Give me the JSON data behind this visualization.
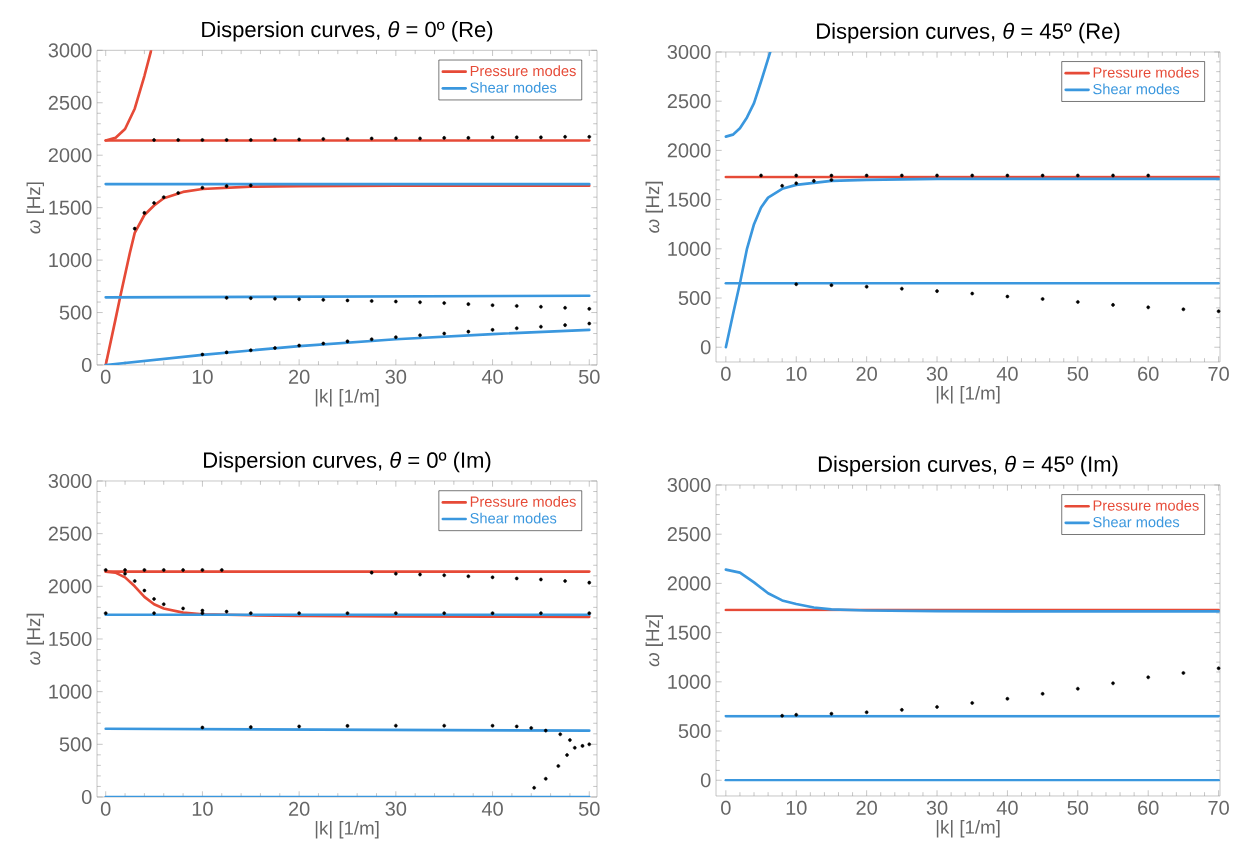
{
  "chart_data": [
    {
      "type": "line",
      "title": "Dispersion curves, *θ* = 0º (Re)",
      "xlabel": "|k| [1/m]",
      "ylabel": "*ω* [Hz]",
      "xlim": [
        -0.9,
        50.8
      ],
      "ylim": [
        0,
        3000
      ],
      "xticks": [
        0,
        10,
        20,
        30,
        40,
        50
      ],
      "yticks": [
        0,
        500,
        1000,
        1500,
        2000,
        2500,
        3000
      ],
      "legend": "top right",
      "series": [
        {
          "name": "Pressure modes",
          "color": "#e64a37",
          "x": [
            0,
            50
          ],
          "values": [
            2140,
            2140
          ]
        },
        {
          "color": "#e64a37",
          "x": [
            0,
            1,
            2,
            3,
            4,
            4.7
          ],
          "values": [
            2140,
            2165,
            2250,
            2443,
            2755,
            3000
          ]
        },
        {
          "color": "#e64a37",
          "x": [
            0,
            1,
            1.5,
            2,
            2.5,
            3,
            4,
            5,
            6,
            8,
            10,
            15,
            20,
            30,
            40,
            50
          ],
          "values": [
            0,
            430,
            650,
            860,
            1070,
            1260,
            1430,
            1520,
            1590,
            1650,
            1678,
            1700,
            1705,
            1710,
            1710,
            1710
          ]
        },
        {
          "name": "Shear modes",
          "color": "#3a97de",
          "x": [
            0,
            50
          ],
          "values": [
            1725,
            1725
          ]
        },
        {
          "color": "#3a97de",
          "x": [
            0,
            50
          ],
          "values": [
            645,
            660
          ]
        },
        {
          "color": "#3a97de",
          "x": [
            0,
            10,
            20,
            30,
            40,
            50
          ],
          "values": [
            0,
            97,
            180,
            245,
            295,
            335
          ]
        },
        {
          "type": "scatter",
          "marker": "circle",
          "color": "#000000",
          "x": [
            5,
            7.5,
            10,
            12.5,
            15,
            17.5,
            20,
            22.5,
            25,
            27.5,
            30,
            32.5,
            35,
            37.5,
            40,
            42.5,
            45,
            47.5,
            50
          ],
          "values": [
            2145,
            2145,
            2145,
            2145,
            2145,
            2150,
            2150,
            2155,
            2155,
            2160,
            2160,
            2160,
            2165,
            2165,
            2170,
            2170,
            2170,
            2175,
            2175
          ]
        },
        {
          "type": "scatter",
          "marker": "circle",
          "color": "#000000",
          "x": [
            3,
            4,
            5,
            6,
            7.5,
            10,
            12.5,
            15
          ],
          "values": [
            1300,
            1450,
            1545,
            1600,
            1640,
            1690,
            1705,
            1712
          ]
        },
        {
          "type": "scatter",
          "marker": "circle",
          "color": "#000000",
          "x": [
            12.5,
            15,
            17.5,
            20,
            22.5,
            25,
            27.5,
            30,
            32.5,
            35,
            37.5,
            40,
            42.5,
            45,
            47.5,
            50
          ],
          "values": [
            640,
            637,
            632,
            627,
            621,
            615,
            610,
            605,
            598,
            590,
            580,
            570,
            563,
            555,
            545,
            535
          ]
        },
        {
          "type": "scatter",
          "marker": "circle",
          "color": "#000000",
          "x": [
            10,
            12.5,
            15,
            17.5,
            20,
            22.5,
            25,
            27.5,
            30,
            32.5,
            35,
            37.5,
            40,
            42.5,
            45,
            47.5,
            50
          ],
          "values": [
            100,
            120,
            140,
            162,
            185,
            205,
            225,
            245,
            265,
            283,
            300,
            318,
            335,
            350,
            365,
            380,
            395
          ]
        }
      ]
    },
    {
      "type": "line",
      "title": "Dispersion curves, *θ* = 45º (Re)",
      "xlabel": "|k| [1/m]",
      "ylabel": "*ω* [Hz]",
      "xlim": [
        -1.4,
        70.2
      ],
      "ylim": [
        -150,
        3000
      ],
      "xticks": [
        0,
        10,
        20,
        30,
        40,
        50,
        60,
        70
      ],
      "yticks": [
        0,
        500,
        1000,
        1500,
        2000,
        2500,
        3000
      ],
      "legend": "top right",
      "series": [
        {
          "name": "Pressure modes",
          "color": "#e64a37",
          "x": [
            0,
            70
          ],
          "values": [
            1730,
            1730
          ]
        },
        {
          "name": "Shear modes",
          "color": "#3a97de",
          "x": [
            0,
            1,
            2,
            3,
            4,
            5,
            6.3
          ],
          "values": [
            2140,
            2160,
            2225,
            2335,
            2480,
            2700,
            3000
          ]
        },
        {
          "color": "#3a97de",
          "x": [
            0,
            1,
            2,
            3,
            4,
            5,
            6,
            8,
            10,
            15,
            20,
            30,
            40,
            50,
            60,
            70
          ],
          "values": [
            0,
            330,
            650,
            1000,
            1250,
            1420,
            1520,
            1610,
            1650,
            1690,
            1700,
            1710,
            1710,
            1710,
            1710,
            1710
          ]
        },
        {
          "color": "#3a97de",
          "x": [
            0,
            70
          ],
          "values": [
            650,
            650
          ]
        },
        {
          "type": "scatter",
          "marker": "circle",
          "color": "#000000",
          "x": [
            5,
            10,
            15,
            20,
            25,
            30,
            35,
            40,
            45,
            50,
            55,
            60
          ],
          "values": [
            1745,
            1745,
            1745,
            1745,
            1745,
            1745,
            1745,
            1745,
            1745,
            1745,
            1745,
            1745
          ]
        },
        {
          "type": "scatter",
          "marker": "circle",
          "color": "#000000",
          "x": [
            8,
            10,
            12.5,
            15
          ],
          "values": [
            1640,
            1665,
            1690,
            1700
          ]
        },
        {
          "type": "scatter",
          "marker": "circle",
          "color": "#000000",
          "x": [
            10,
            15,
            20,
            25,
            30,
            35,
            40,
            45,
            50,
            55,
            60,
            65,
            70
          ],
          "values": [
            640,
            630,
            615,
            595,
            570,
            545,
            515,
            490,
            460,
            430,
            405,
            385,
            365
          ]
        }
      ]
    },
    {
      "type": "line",
      "title": "Dispersion curves, *θ* = 0º (Im)",
      "xlabel": "|k| [1/m]",
      "ylabel": "*ω* [Hz]",
      "xlim": [
        -0.9,
        50.8
      ],
      "ylim": [
        0,
        3000
      ],
      "xticks": [
        0,
        10,
        20,
        30,
        40,
        50
      ],
      "yticks": [
        0,
        500,
        1000,
        1500,
        2000,
        2500,
        3000
      ],
      "legend": "top right",
      "series": [
        {
          "name": "Pressure modes",
          "color": "#e64a37",
          "x": [
            0,
            50
          ],
          "values": [
            2140,
            2140
          ]
        },
        {
          "color": "#e64a37",
          "x": [
            0,
            1,
            2,
            3,
            4,
            5,
            6,
            8,
            10,
            15,
            20,
            30,
            40,
            50
          ],
          "values": [
            2140,
            2130,
            2085,
            2000,
            1900,
            1830,
            1790,
            1750,
            1735,
            1725,
            1720,
            1715,
            1712,
            1710
          ]
        },
        {
          "name": "Shear modes",
          "color": "#3a97de",
          "x": [
            0,
            50
          ],
          "values": [
            1730,
            1730
          ]
        },
        {
          "color": "#3a97de",
          "x": [
            0,
            50
          ],
          "values": [
            648,
            630
          ]
        },
        {
          "color": "#3a97de",
          "x": [
            0,
            50
          ],
          "values": [
            0,
            0
          ]
        },
        {
          "type": "scatter",
          "marker": "circle",
          "color": "#000000",
          "x": [
            0,
            2,
            4,
            6,
            8,
            10,
            12
          ],
          "values": [
            2155,
            2155,
            2155,
            2155,
            2155,
            2155,
            2155
          ]
        },
        {
          "type": "scatter",
          "marker": "circle",
          "color": "#000000",
          "x": [
            27.5,
            30,
            32.5,
            35,
            37.5,
            40,
            42.5,
            45,
            47.5,
            50
          ],
          "values": [
            2130,
            2120,
            2112,
            2105,
            2095,
            2085,
            2075,
            2065,
            2050,
            2035
          ]
        },
        {
          "type": "scatter",
          "marker": "circle",
          "color": "#000000",
          "x": [
            2,
            3,
            4,
            5,
            6,
            8,
            10,
            12.5
          ],
          "values": [
            2120,
            2050,
            1960,
            1880,
            1830,
            1790,
            1770,
            1760
          ]
        },
        {
          "type": "scatter",
          "marker": "circle",
          "color": "#000000",
          "x": [
            0,
            5,
            10,
            15,
            20,
            25,
            30,
            35,
            40,
            45,
            50
          ],
          "values": [
            1745,
            1745,
            1745,
            1745,
            1745,
            1745,
            1745,
            1745,
            1745,
            1745,
            1745
          ]
        },
        {
          "type": "scatter",
          "marker": "circle",
          "color": "#000000",
          "x": [
            10,
            15,
            20,
            25,
            30,
            35,
            40,
            42.5,
            44,
            45.5,
            47,
            48
          ],
          "values": [
            660,
            663,
            670,
            675,
            677,
            677,
            677,
            670,
            655,
            630,
            595,
            540
          ]
        },
        {
          "type": "scatter",
          "marker": "circle",
          "color": "#000000",
          "x": [
            44.3,
            45.5,
            46.8,
            47.7,
            48.5,
            49.3,
            50
          ],
          "values": [
            87,
            173,
            294,
            398,
            467,
            485,
            500
          ]
        }
      ]
    },
    {
      "type": "line",
      "title": "Dispersion curves, *θ* = 45º (Im)",
      "xlabel": "|k| [1/m]",
      "ylabel": "*ω* [Hz]",
      "xlim": [
        -1.4,
        70.2
      ],
      "ylim": [
        -160,
        3000
      ],
      "xticks": [
        0,
        10,
        20,
        30,
        40,
        50,
        60,
        70
      ],
      "yticks": [
        0,
        500,
        1000,
        1500,
        2000,
        2500,
        3000
      ],
      "legend": "top right",
      "series": [
        {
          "name": "Pressure modes",
          "color": "#e64a37",
          "x": [
            0,
            70
          ],
          "values": [
            1730,
            1730
          ]
        },
        {
          "name": "Shear modes",
          "color": "#3a97de",
          "x": [
            0,
            2,
            4,
            6,
            8,
            10,
            12.5,
            15,
            20,
            30,
            40,
            50,
            60,
            70
          ],
          "values": [
            2140,
            2110,
            2010,
            1900,
            1827,
            1791,
            1755,
            1736,
            1725,
            1718,
            1716,
            1715,
            1715,
            1715
          ]
        },
        {
          "color": "#3a97de",
          "x": [
            0,
            70
          ],
          "values": [
            652,
            652
          ]
        },
        {
          "color": "#3a97de",
          "x": [
            0,
            70
          ],
          "values": [
            0,
            0
          ]
        },
        {
          "type": "scatter",
          "marker": "circle",
          "color": "#000000",
          "x": [
            8,
            10,
            15,
            20,
            25,
            30,
            35,
            40,
            45,
            50,
            55,
            60,
            65,
            70
          ],
          "values": [
            655,
            665,
            676,
            690,
            715,
            745,
            785,
            828,
            878,
            930,
            985,
            1046,
            1090,
            1137
          ]
        }
      ]
    }
  ]
}
